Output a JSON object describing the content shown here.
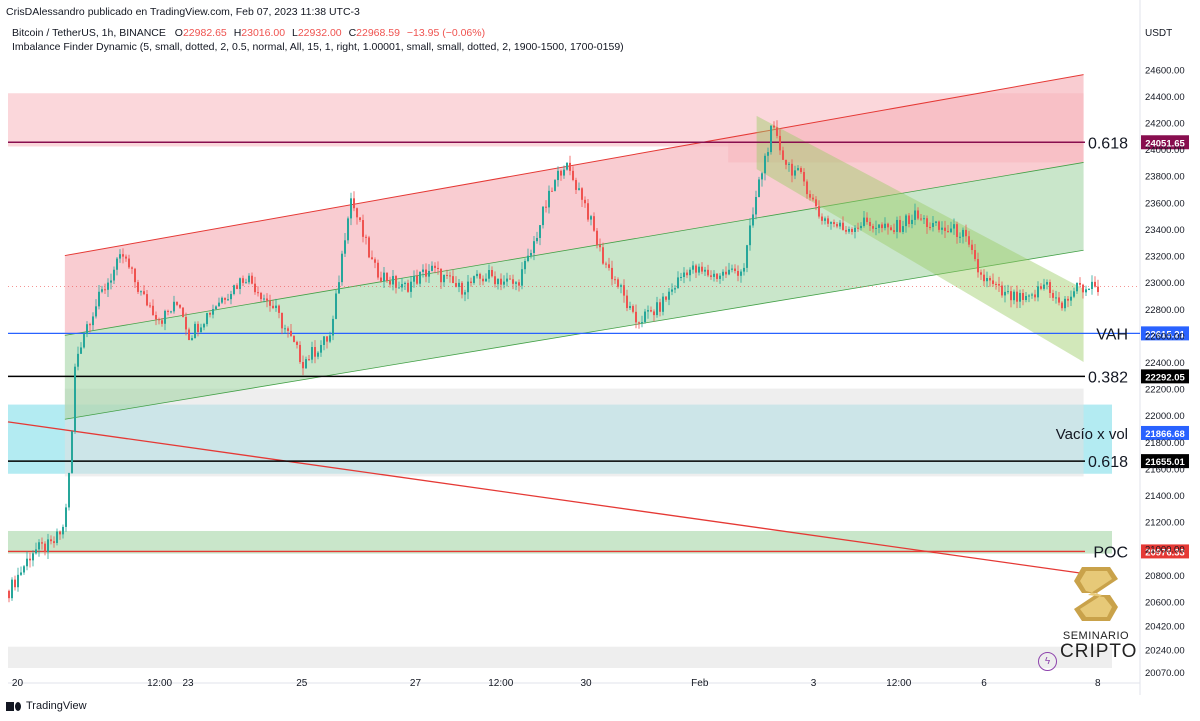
{
  "header": {
    "publisher": "CrisDAlessandro publicado en TradingView.com, Feb 07, 2023 11:38 UTC-3",
    "symbol": "Bitcoin / TetherUS, 1h, BINANCE",
    "ohlc": {
      "o_label": "O",
      "o": "22982.65",
      "h_label": "H",
      "h": "23016.00",
      "l_label": "L",
      "l": "22932.00",
      "c_label": "C",
      "c": "22968.59",
      "change": "−13.95 (−0.06%)"
    },
    "indicator": "Imbalance Finder Dynamic (5, small, dotted, 2, 0.5, normal, All, 15, 1, right, 1.00001, small, small, dotted, 2, 1900-1500, 1700-0159)"
  },
  "footer": {
    "brand": "TradingView"
  },
  "watermark": {
    "top": "SEMINARIO",
    "bottom": "CRIPTO"
  },
  "colors": {
    "up": "#26a69a",
    "down": "#ef5350",
    "text": "#131722",
    "red_zone": "#f7b6bd",
    "green_zone": "#a5d6a7",
    "blue_zone": "#80deea",
    "grey_zone": "#e0e0e0",
    "vah": "#2962ff",
    "fib": "#000000",
    "fib_top": "#880e4f",
    "poc": "#e53935"
  },
  "chart_data": {
    "type": "candlestick",
    "title": "Bitcoin / TetherUS, 1h, BINANCE",
    "currency_label": "USDT",
    "ylim": [
      20070,
      24700
    ],
    "y_ticks": [
      "24600.00",
      "24400.00",
      "24200.00",
      "24000.00",
      "23800.00",
      "23600.00",
      "23400.00",
      "23200.00",
      "23000.00",
      "22800.00",
      "22600.00",
      "22400.00",
      "22200.00",
      "22000.00",
      "21800.00",
      "21600.00",
      "21400.00",
      "21200.00",
      "21000.00",
      "20800.00",
      "20600.00",
      "20420.00",
      "20240.00",
      "20070.00"
    ],
    "x_range": [
      "2023-01-19T20:00",
      "2023-02-08T06:00"
    ],
    "x_ticks": [
      {
        "t": "2023-01-20T00:00",
        "label": "20"
      },
      {
        "t": "2023-01-22T12:00",
        "label": "12:00"
      },
      {
        "t": "2023-01-23T00:00",
        "label": "23"
      },
      {
        "t": "2023-01-25T00:00",
        "label": "25"
      },
      {
        "t": "2023-01-27T00:00",
        "label": "27"
      },
      {
        "t": "2023-01-28T12:00",
        "label": "12:00"
      },
      {
        "t": "2023-01-30T00:00",
        "label": "30"
      },
      {
        "t": "2023-02-01T00:00",
        "label": "Feb"
      },
      {
        "t": "2023-02-03T00:00",
        "label": "3"
      },
      {
        "t": "2023-02-04T12:00",
        "label": "12:00"
      },
      {
        "t": "2023-02-06T00:00",
        "label": "6"
      },
      {
        "t": "2023-02-08T00:00",
        "label": "8"
      }
    ],
    "price_series": [
      [
        "2023-01-19T20:00",
        20680
      ],
      [
        "2023-01-20T06:00",
        20980
      ],
      [
        "2023-01-20T14:00",
        21020
      ],
      [
        "2023-01-20T19:00",
        21150
      ],
      [
        "2023-01-20T22:00",
        21650
      ],
      [
        "2023-01-21T00:00",
        22400
      ],
      [
        "2023-01-21T04:00",
        22650
      ],
      [
        "2023-01-21T12:00",
        22950
      ],
      [
        "2023-01-21T20:00",
        23200
      ],
      [
        "2023-01-22T04:00",
        22900
      ],
      [
        "2023-01-22T12:00",
        22720
      ],
      [
        "2023-01-22T20:00",
        22850
      ],
      [
        "2023-01-23T00:00",
        22600
      ],
      [
        "2023-01-23T12:00",
        22850
      ],
      [
        "2023-01-24T00:00",
        23050
      ],
      [
        "2023-01-24T12:00",
        22800
      ],
      [
        "2023-01-25T00:00",
        22400
      ],
      [
        "2023-01-25T12:00",
        22600
      ],
      [
        "2023-01-25T20:00",
        23650
      ],
      [
        "2023-01-26T06:00",
        23100
      ],
      [
        "2023-01-26T18:00",
        22950
      ],
      [
        "2023-01-27T06:00",
        23100
      ],
      [
        "2023-01-27T18:00",
        22950
      ],
      [
        "2023-01-28T06:00",
        23050
      ],
      [
        "2023-01-28T18:00",
        22980
      ],
      [
        "2023-01-29T00:00",
        23200
      ],
      [
        "2023-01-29T06:00",
        23550
      ],
      [
        "2023-01-29T14:00",
        23900
      ],
      [
        "2023-01-29T22:00",
        23650
      ],
      [
        "2023-01-30T06:00",
        23200
      ],
      [
        "2023-01-30T14:00",
        22950
      ],
      [
        "2023-01-30T20:00",
        22700
      ],
      [
        "2023-01-31T06:00",
        22800
      ],
      [
        "2023-01-31T18:00",
        23100
      ],
      [
        "2023-02-01T06:00",
        23050
      ],
      [
        "2023-02-01T18:00",
        23100
      ],
      [
        "2023-02-02T00:00",
        23700
      ],
      [
        "2023-02-02T06:00",
        24150
      ],
      [
        "2023-02-02T12:00",
        23900
      ],
      [
        "2023-02-02T20:00",
        23750
      ],
      [
        "2023-02-03T02:00",
        23500
      ],
      [
        "2023-02-03T12:00",
        23400
      ],
      [
        "2023-02-03T22:00",
        23450
      ],
      [
        "2023-02-04T08:00",
        23380
      ],
      [
        "2023-02-04T18:00",
        23500
      ],
      [
        "2023-02-05T04:00",
        23400
      ],
      [
        "2023-02-05T14:00",
        23380
      ],
      [
        "2023-02-05T22:00",
        23050
      ],
      [
        "2023-02-06T08:00",
        22900
      ],
      [
        "2023-02-06T18:00",
        22850
      ],
      [
        "2023-02-07T02:00",
        23000
      ],
      [
        "2023-02-07T08:00",
        22800
      ],
      [
        "2023-02-07T14:00",
        22950
      ],
      [
        "2023-02-08T00:00",
        22970
      ]
    ],
    "zones": [
      {
        "kind": "red",
        "x": [
          "2023-01-19T20:00",
          "2023-02-07T18:00"
        ],
        "y": [
          24020,
          24420
        ]
      },
      {
        "kind": "red",
        "x": [
          "2023-02-01T12:00",
          "2023-02-07T18:00"
        ],
        "y": [
          23900,
          24060
        ]
      },
      {
        "kind": "blue",
        "x": [
          "2023-01-19T20:00",
          "2023-02-08T06:00"
        ],
        "y": [
          21560,
          22080
        ]
      },
      {
        "kind": "grey",
        "x": [
          "2023-01-20T20:00",
          "2023-02-07T18:00"
        ],
        "y": [
          21540,
          22200
        ]
      },
      {
        "kind": "green",
        "x": [
          "2023-01-19T20:00",
          "2023-02-08T06:00"
        ],
        "y": [
          20960,
          21130
        ]
      },
      {
        "kind": "grey",
        "x": [
          "2023-01-19T20:00",
          "2023-02-08T06:00"
        ],
        "y": [
          20100,
          20260
        ]
      }
    ],
    "channel_up": {
      "x": [
        "2023-01-20T20:00",
        "2023-02-07T18:00"
      ],
      "top": [
        23200,
        24560
      ],
      "mid": [
        22600,
        23900
      ],
      "bottom": [
        21970,
        23240
      ]
    },
    "channel_down": {
      "x": [
        "2023-02-02T00:00",
        "2023-02-07T18:00"
      ],
      "top": [
        24250,
        22950
      ],
      "bottom": [
        23850,
        22400
      ]
    },
    "diagonal_line": {
      "x": [
        "2023-01-19T20:00",
        "2023-02-08T06:00"
      ],
      "y": [
        21950,
        20780
      ]
    },
    "levels": [
      {
        "name": "fib_0618_top",
        "label": "0.618",
        "value": 24051.65,
        "price_label": "24051.65",
        "kind": "fib_top"
      },
      {
        "name": "vah",
        "label": "VAH",
        "value": 22615.21,
        "price_label": "22615.21",
        "kind": "vah"
      },
      {
        "name": "fib_0382",
        "label": "0.382",
        "value": 22292.05,
        "price_label": "22292.05",
        "kind": "fib"
      },
      {
        "name": "fib_0618_low",
        "label": "0.618",
        "value": 21655.01,
        "price_label": "21655.01",
        "kind": "fib"
      },
      {
        "name": "poc",
        "label": "POC",
        "value": 20976.33,
        "price_label": "20976.33",
        "kind": "poc"
      }
    ],
    "zone_labels": [
      {
        "name": "vacio-x-vol",
        "label": "Vacío x vol",
        "value": 21866.68,
        "price_label": "21866.68",
        "kind": "vah"
      },
      {
        "name": "current-price",
        "label": "",
        "value": 22968.59,
        "price_label": "",
        "kind": "current"
      }
    ]
  }
}
